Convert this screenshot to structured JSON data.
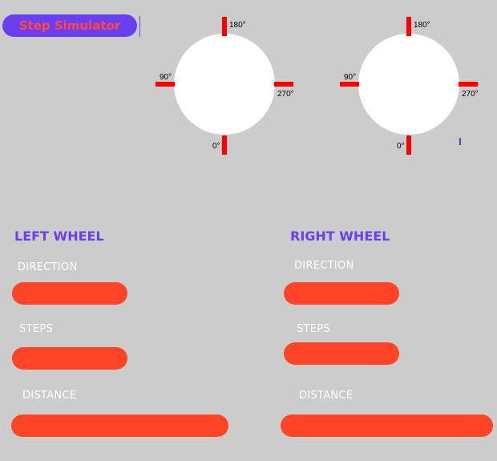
{
  "header": {
    "title": "Step Simulator"
  },
  "dials": [
    {
      "labels": {
        "top": "180°",
        "left": "90°",
        "right": "270°",
        "bottom": "0°"
      }
    },
    {
      "labels": {
        "top": "180°",
        "left": "90°",
        "right": "270°",
        "bottom": "0°"
      }
    }
  ],
  "left_wheel": {
    "title": "LEFT WHEEL",
    "direction_label": "DIRECTION",
    "steps_label": "STEPS",
    "distance_label": "DISTANCE"
  },
  "right_wheel": {
    "title": "RIGHT WHEEL",
    "direction_label": "DIRECTION",
    "steps_label": "STEPS",
    "distance_label": "DISTANCE"
  },
  "colors": {
    "background": "#cccccc",
    "accent_purple": "#6a3ff0",
    "field_red": "#ff4526",
    "tick_red": "#ff0000"
  }
}
